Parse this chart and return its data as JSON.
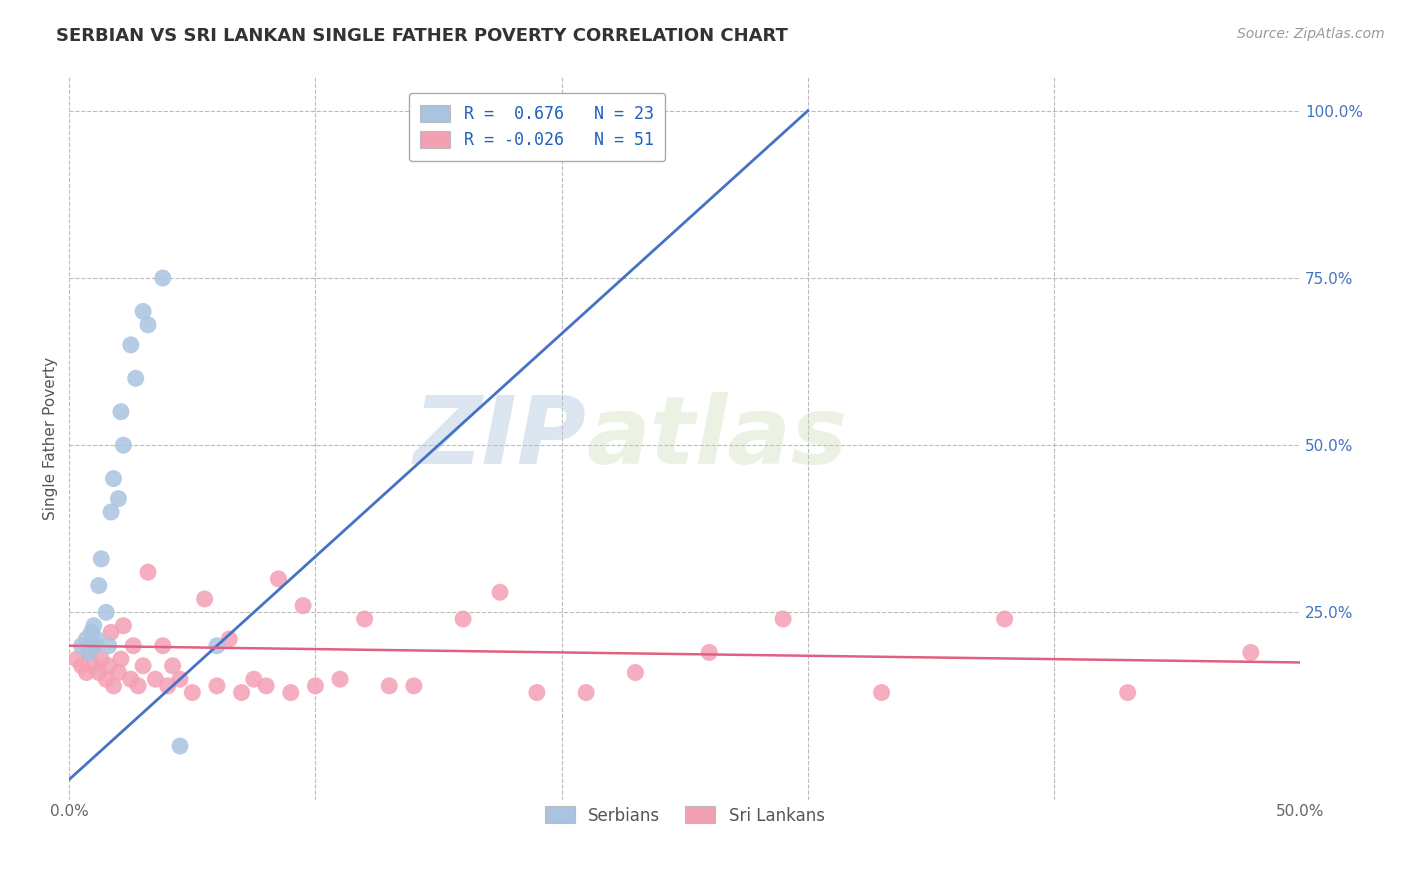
{
  "title": "SERBIAN VS SRI LANKAN SINGLE FATHER POVERTY CORRELATION CHART",
  "source_text": "Source: ZipAtlas.com",
  "ylabel": "Single Father Poverty",
  "watermark_zip": "ZIP",
  "watermark_atlas": "atlas",
  "xlim": [
    0.0,
    0.5
  ],
  "ylim": [
    -0.03,
    1.05
  ],
  "xticks": [
    0.0,
    0.1,
    0.2,
    0.3,
    0.4,
    0.5
  ],
  "xticklabels": [
    "0.0%",
    "",
    "",
    "",
    "",
    "50.0%"
  ],
  "yticks_right": [
    0.25,
    0.5,
    0.75,
    1.0
  ],
  "yticklabels_right": [
    "25.0%",
    "50.0%",
    "75.0%",
    "100.0%"
  ],
  "serbian_R": 0.676,
  "serbian_N": 23,
  "srilanka_R": -0.026,
  "srilanka_N": 51,
  "serbian_color": "#a8c4e0",
  "srilanka_color": "#f4a0b4",
  "serbian_line_color": "#4472c4",
  "srilanka_line_color": "#e06080",
  "legend_R_color": "#2060c0",
  "grid_color": "#bbbbbb",
  "background_color": "#ffffff",
  "serbian_x": [
    0.005,
    0.007,
    0.008,
    0.009,
    0.01,
    0.01,
    0.011,
    0.012,
    0.013,
    0.015,
    0.016,
    0.017,
    0.018,
    0.02,
    0.021,
    0.022,
    0.025,
    0.027,
    0.03,
    0.032,
    0.038,
    0.045,
    0.06
  ],
  "serbian_y": [
    0.2,
    0.21,
    0.19,
    0.22,
    0.2,
    0.23,
    0.21,
    0.29,
    0.33,
    0.25,
    0.2,
    0.4,
    0.45,
    0.42,
    0.55,
    0.5,
    0.65,
    0.6,
    0.7,
    0.68,
    0.75,
    0.05,
    0.2
  ],
  "srilanka_x": [
    0.003,
    0.005,
    0.007,
    0.008,
    0.01,
    0.01,
    0.012,
    0.013,
    0.015,
    0.016,
    0.017,
    0.018,
    0.02,
    0.021,
    0.022,
    0.025,
    0.026,
    0.028,
    0.03,
    0.032,
    0.035,
    0.038,
    0.04,
    0.042,
    0.045,
    0.05,
    0.055,
    0.06,
    0.065,
    0.07,
    0.075,
    0.08,
    0.085,
    0.09,
    0.095,
    0.1,
    0.11,
    0.12,
    0.13,
    0.14,
    0.16,
    0.175,
    0.19,
    0.21,
    0.23,
    0.26,
    0.29,
    0.33,
    0.38,
    0.43,
    0.48
  ],
  "srilanka_y": [
    0.18,
    0.17,
    0.16,
    0.19,
    0.17,
    0.2,
    0.16,
    0.18,
    0.15,
    0.17,
    0.22,
    0.14,
    0.16,
    0.18,
    0.23,
    0.15,
    0.2,
    0.14,
    0.17,
    0.31,
    0.15,
    0.2,
    0.14,
    0.17,
    0.15,
    0.13,
    0.27,
    0.14,
    0.21,
    0.13,
    0.15,
    0.14,
    0.3,
    0.13,
    0.26,
    0.14,
    0.15,
    0.24,
    0.14,
    0.14,
    0.24,
    0.28,
    0.13,
    0.13,
    0.16,
    0.19,
    0.24,
    0.13,
    0.24,
    0.13,
    0.19
  ],
  "serbian_line_x": [
    0.0,
    0.3
  ],
  "serbian_line_y": [
    0.0,
    1.0
  ],
  "srilanka_line_x": [
    0.0,
    0.5
  ],
  "srilanka_line_y": [
    0.2,
    0.175
  ]
}
